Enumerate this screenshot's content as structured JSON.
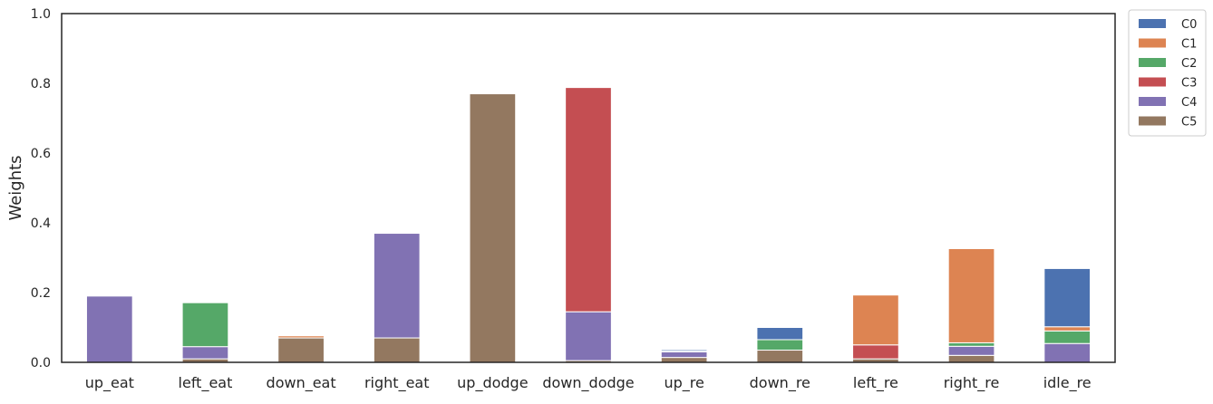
{
  "chart_data": {
    "type": "bar",
    "stacked": true,
    "title": "",
    "xlabel": "",
    "ylabel": "Weights",
    "ylim": [
      0,
      1.0
    ],
    "yticks": [
      "0.0",
      "0.2",
      "0.4",
      "0.6",
      "0.8",
      "1.0"
    ],
    "grid": false,
    "legend_position": "outside-top-right",
    "categories": [
      "up_eat",
      "left_eat",
      "down_eat",
      "right_eat",
      "up_dodge",
      "down_dodge",
      "up_re",
      "down_re",
      "left_re",
      "right_re",
      "idle_re"
    ],
    "stack_order_bottom_to_top": [
      "C5",
      "C4",
      "C3",
      "C2",
      "C1",
      "C0"
    ],
    "series": [
      {
        "name": "C0",
        "color": "#4C72B0",
        "values": [
          0,
          0,
          0,
          0,
          0,
          0,
          0.004,
          0.035,
          0,
          0.002,
          0.167
        ]
      },
      {
        "name": "C1",
        "color": "#DD8452",
        "values": [
          0,
          0,
          0.006,
          0,
          0,
          0,
          0.002,
          0,
          0.143,
          0.27,
          0.012
        ]
      },
      {
        "name": "C2",
        "color": "#55A868",
        "values": [
          0,
          0.126,
          0,
          0,
          0,
          0,
          0,
          0.03,
          0,
          0.01,
          0.036
        ]
      },
      {
        "name": "C3",
        "color": "#C44E52",
        "values": [
          0,
          0,
          0,
          0,
          0,
          0.643,
          0,
          0,
          0.04,
          0,
          0
        ]
      },
      {
        "name": "C4",
        "color": "#8172B3",
        "values": [
          0.19,
          0.035,
          0,
          0.3,
          0,
          0.14,
          0.016,
          0,
          0,
          0.026,
          0.054
        ]
      },
      {
        "name": "C5",
        "color": "#937860",
        "values": [
          0,
          0.01,
          0.07,
          0.07,
          0.77,
          0.005,
          0.014,
          0.035,
          0.01,
          0.02,
          0
        ]
      }
    ]
  }
}
